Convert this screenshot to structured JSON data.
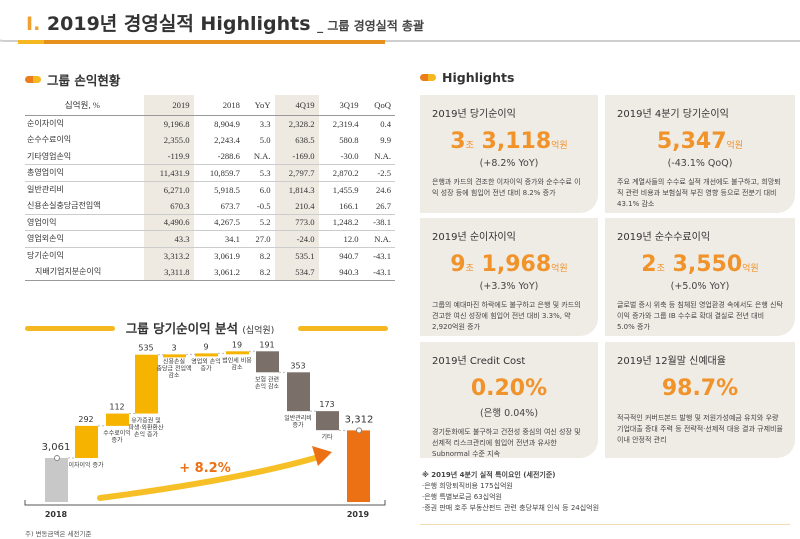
{
  "header": {
    "number": "I.",
    "title": "2019년 경영실적 Highlights",
    "subtitle": "_ 그룹 경영실적 총괄"
  },
  "table_section": {
    "title": "그룹 손익현황"
  },
  "table": {
    "columns": [
      "십억원, %",
      "2019",
      "2018",
      "YoY",
      "4Q19",
      "3Q19",
      "QoQ"
    ],
    "rows": [
      [
        "순이자이익",
        "9,196.8",
        "8,904.9",
        "3.3",
        "2,328.2",
        "2,319.4",
        "0.4"
      ],
      [
        "순수수료이익",
        "2,355.0",
        "2,243.4",
        "5.0",
        "638.5",
        "580.8",
        "9.9"
      ],
      [
        "기타영업손익",
        "-119.9",
        "-288.6",
        "N.A.",
        "-169.0",
        "-30.0",
        "N.A."
      ],
      [
        "총영업이익",
        "11,431.9",
        "10,859.7",
        "5.3",
        "2,797.7",
        "2,870.2",
        "-2.5"
      ],
      [
        "일반관리비",
        "6,271.0",
        "5,918.5",
        "6.0",
        "1,814.3",
        "1,455.9",
        "24.6"
      ],
      [
        "신용손실충당금전입액",
        "670.3",
        "673.7",
        "-0.5",
        "210.4",
        "166.1",
        "26.7"
      ],
      [
        "영업이익",
        "4,490.6",
        "4,267.5",
        "5.2",
        "773.0",
        "1,248.2",
        "-38.1"
      ],
      [
        "영업외손익",
        "43.3",
        "34.1",
        "27.0",
        "-24.0",
        "12.0",
        "N.A."
      ],
      [
        "당기순이익",
        "3,313.2",
        "3,061.9",
        "8.2",
        "535.1",
        "940.7",
        "-43.1"
      ],
      [
        "지배기업지분순이익",
        "3,311.8",
        "3,061.2",
        "8.2",
        "534.7",
        "940.3",
        "-43.1"
      ]
    ]
  },
  "chart_data": {
    "type": "waterfall",
    "title": "그룹 당기순이익 분석",
    "unit": "(십억원)",
    "start": {
      "label": "2018",
      "value": 3061,
      "value_label": "3,061"
    },
    "end": {
      "label": "2019",
      "value": 3312,
      "value_label": "3,312"
    },
    "steps": [
      {
        "label": "이자이익 증가",
        "value": 292
      },
      {
        "label": "수수료이익 증가",
        "value": 112
      },
      {
        "label": "유가증권 및 파생·외환환산 손익 증가",
        "value": 535
      },
      {
        "label": "신용손실 충당금 전입액 감소",
        "value": 3
      },
      {
        "label": "영업외 손익 증가",
        "value": 9
      },
      {
        "label": "법인세 비용 감소",
        "value": 19
      },
      {
        "label": "보험 관련 손익 감소",
        "value": -191
      },
      {
        "label": "일반관리비 증가",
        "value": -353
      },
      {
        "label": "기타",
        "value": -173
      }
    ],
    "growth_label": "+ 8.2%",
    "colors": {
      "increase": "#f6b400",
      "decrease": "#7a7069",
      "start": "#c8c8c8",
      "end": "#ec7014"
    }
  },
  "chart_footnote": "주) 변동금액은 세전기준",
  "highlights_section": {
    "title": "Highlights"
  },
  "cards": [
    {
      "title": "2019년 당기순이익",
      "v1": "3",
      "u1": "조",
      "v2": "3,118",
      "u2": "억원",
      "sub": "(+8.2% YoY)",
      "desc": "은행과 카드의 견조한 이자이익 증가와 순수수료 이익 성장 등에 힘입어 전년 대비 8.2% 증가"
    },
    {
      "title": "2019년 4분기 당기순이익",
      "v1": "",
      "u1": "",
      "v2": "5,347",
      "u2": "억원",
      "sub": "(-43.1% QoQ)",
      "desc": "주요 계열사들의 수수료 실적 개선에도 불구하고, 희망퇴직 관련 비용과 보험실적 부진 영향 등으로 전분기 대비 43.1% 감소"
    },
    {
      "title": "2019년 순이자이익",
      "v1": "9",
      "u1": "조",
      "v2": "1,968",
      "u2": "억원",
      "sub": "(+3.3% YoY)",
      "desc": "그룹의 예대마진 하락에도 불구하고 은행 및 카드의 견고한 여신 성장에 힘입어 전년 대비 3.3%, 약 2,920억원 증가"
    },
    {
      "title": "2019년 순수수료이익",
      "v1": "2",
      "u1": "조",
      "v2": "3,550",
      "u2": "억원",
      "sub": "(+5.0% YoY)",
      "desc": "글로벌 증시 위축 등 침체된 영업환경 속에서도 은행 신탁이익 증가와 그룹 IB 수수료 확대 결실로 전년 대비 5.0% 증가"
    },
    {
      "title": "2019년 Credit Cost",
      "v1": "",
      "u1": "",
      "v2": "0.20%",
      "u2": "",
      "sub": "(은행 0.04%)",
      "desc": "경기둔화에도 불구하고 건전성 중심의 여신 성장 및 선제적 리스크관리에 힘입어 전년과 유사한 Subnormal 수준 지속"
    },
    {
      "title": "2019년 12월말 신예대율",
      "v1": "",
      "u1": "",
      "v2": "98.7%",
      "u2": "",
      "sub": "",
      "desc": "적극적인 커버드본드 발행 및 저원가성예금 유치와 우량 기업대출 증대 주력 등 전략적·선제적 대응 결과 규제비율 이내 안정적 관리"
    }
  ],
  "notes": {
    "title": "※ 2019년 4분기 실적 특이요인 (세전기준)",
    "items": [
      "·은행 희망퇴직비용 175십억원",
      "·은행 특별보로금 63십억원",
      "·증권 판매 호주 부동산펀드 관련 충당부채 인식 등 24십억원"
    ]
  }
}
